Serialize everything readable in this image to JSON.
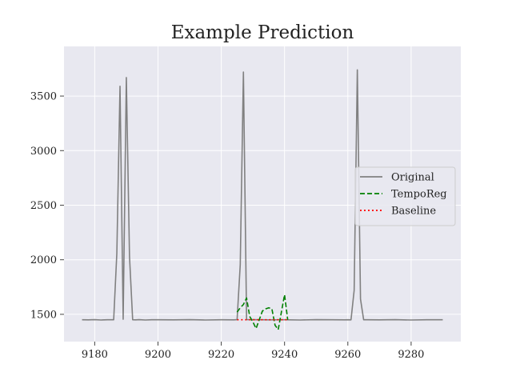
{
  "chart_data": {
    "type": "line",
    "title": "Example Prediction",
    "xlabel": "",
    "ylabel": "",
    "xlim": [
      9170.3,
      9295.7
    ],
    "ylim": [
      1250,
      3955
    ],
    "xticks": [
      9180,
      9200,
      9220,
      9240,
      9260,
      9280
    ],
    "yticks": [
      1500,
      2000,
      2500,
      3000,
      3500
    ],
    "grid": true,
    "legend_position": "center-right",
    "series": [
      {
        "name": "Original",
        "color": "#808080",
        "style": "solid",
        "x": [
          9176,
          9178,
          9180,
          9182,
          9184,
          9186,
          9187,
          9188,
          9189,
          9190,
          9191,
          9192,
          9193,
          9194,
          9196,
          9198,
          9200,
          9205,
          9210,
          9215,
          9220,
          9224,
          9225,
          9226,
          9227,
          9228,
          9229,
          9230,
          9235,
          9240,
          9245,
          9250,
          9255,
          9259,
          9260,
          9261,
          9262,
          9263,
          9264,
          9265,
          9266,
          9270,
          9275,
          9280,
          9285,
          9290
        ],
        "values": [
          1450,
          1449,
          1451,
          1448,
          1450,
          1450,
          2060,
          3590,
          1455,
          3670,
          2030,
          1450,
          1449,
          1451,
          1448,
          1450,
          1450,
          1449,
          1451,
          1448,
          1450,
          1449,
          1451,
          1955,
          3720,
          1452,
          1450,
          1451,
          1449,
          1450,
          1448,
          1451,
          1450,
          1449,
          1450,
          1449,
          1720,
          3740,
          1640,
          1450,
          1450,
          1449,
          1451,
          1448,
          1450,
          1450
        ]
      },
      {
        "name": "TempoReg",
        "color": "#008000",
        "style": "dashed",
        "x": [
          9225,
          9226,
          9227,
          9228,
          9229,
          9230,
          9231,
          9232,
          9233,
          9234,
          9235,
          9236,
          9237,
          9238,
          9239,
          9240,
          9241
        ],
        "values": [
          1520,
          1560,
          1590,
          1650,
          1480,
          1430,
          1370,
          1450,
          1530,
          1550,
          1560,
          1550,
          1400,
          1360,
          1520,
          1680,
          1450
        ]
      },
      {
        "name": "Baseline",
        "color": "#ff0000",
        "style": "dotted",
        "x": [
          9225,
          9241
        ],
        "values": [
          1450,
          1450
        ]
      }
    ]
  }
}
